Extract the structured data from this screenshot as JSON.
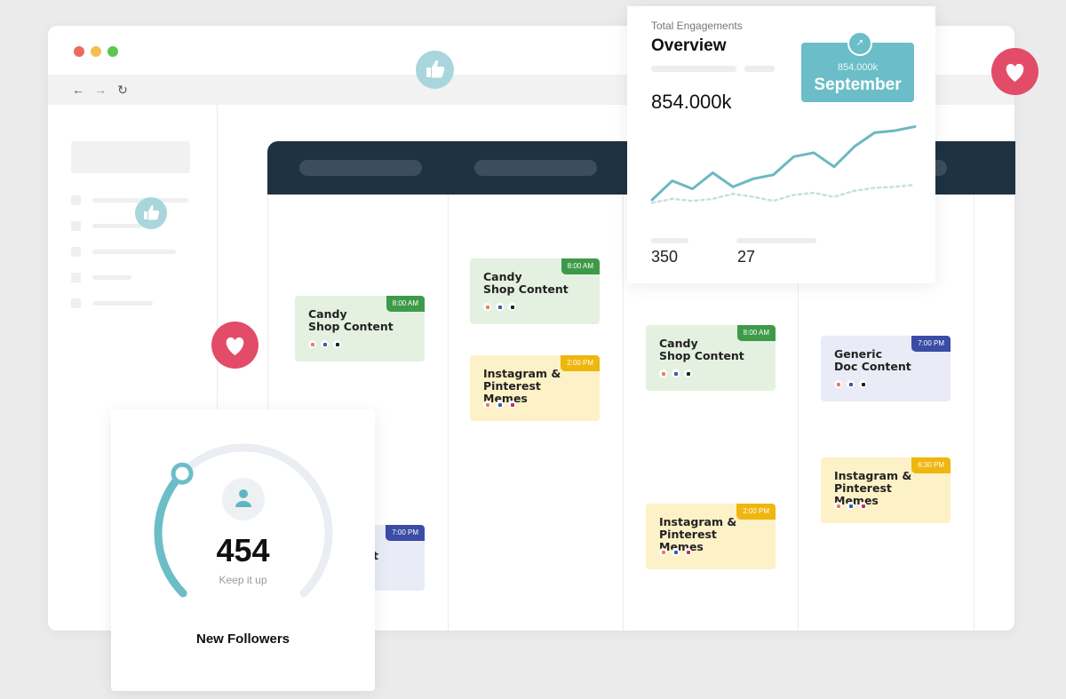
{
  "browser": {
    "controls": {
      "red": "#ec6a5e",
      "yellow": "#f4bf4f",
      "green": "#61c554"
    },
    "nav": {
      "back": "←",
      "forward": "→",
      "reload": "↻"
    }
  },
  "calendar": {
    "events": [
      {
        "col": 0,
        "title_line1": "Candy",
        "title_line2": "Shop Content",
        "title_line3": "",
        "time": "8:00 AM",
        "color": "green"
      },
      {
        "col": 0,
        "title_line1": "",
        "title_line2": "t",
        "title_line3": "",
        "time": "7:00 PM",
        "color": "blue"
      },
      {
        "col": 1,
        "title_line1": "Candy",
        "title_line2": "Shop Content",
        "title_line3": "",
        "time": "8:00 AM",
        "color": "green"
      },
      {
        "col": 1,
        "title_line1": "Instagram &",
        "title_line2": "Pinterest",
        "title_line3": "Memes",
        "time": "2:00 PM",
        "color": "yellow"
      },
      {
        "col": 2,
        "title_line1": "Candy",
        "title_line2": "Shop Content",
        "title_line3": "",
        "time": "8:00 AM",
        "color": "green"
      },
      {
        "col": 2,
        "title_line1": "Instagram &",
        "title_line2": "Pinterest",
        "title_line3": "Memes",
        "time": "2:00 PM",
        "color": "yellow"
      },
      {
        "col": 3,
        "title_line1": "Generic",
        "title_line2": "Doc Content",
        "title_line3": "",
        "time": "7:00 PM",
        "color": "blue"
      },
      {
        "col": 3,
        "title_line1": "Instagram &",
        "title_line2": "Pinterest",
        "title_line3": "Memes",
        "time": "6:30 PM",
        "color": "yellow"
      }
    ]
  },
  "overview": {
    "subtitle": "Total Engagements",
    "title": "Overview",
    "value": "854.000k",
    "badge": {
      "value": "854.000k",
      "month": "September"
    },
    "stats": [
      "350",
      "27"
    ]
  },
  "chart_data": {
    "type": "line",
    "title": "",
    "xlabel": "",
    "ylabel": "",
    "x": [
      0,
      1,
      2,
      3,
      4,
      5,
      6,
      7,
      8,
      9,
      10,
      11,
      12,
      13
    ],
    "series": [
      {
        "values": [
          15,
          34,
          26,
          42,
          28,
          36,
          40,
          58,
          62,
          48,
          68,
          82,
          84,
          88
        ]
      },
      {
        "values": [
          12,
          16,
          14,
          16,
          21,
          18,
          14,
          20,
          22,
          18,
          24,
          27,
          28,
          30
        ]
      }
    ],
    "ylim": [
      0,
      100
    ],
    "grid": false,
    "colors": [
      "#6bb8c2",
      "#c5dfe3"
    ]
  },
  "followers": {
    "count": "454",
    "subtitle": "Keep it up",
    "label": "New Followers",
    "progress": 0.33,
    "color": "#6bbec8"
  },
  "icons": {
    "heart": "heart-icon",
    "thumb": "thumbs-up-icon",
    "heart_color": "#e24c68",
    "thumb_color": "#a8d6dc"
  }
}
